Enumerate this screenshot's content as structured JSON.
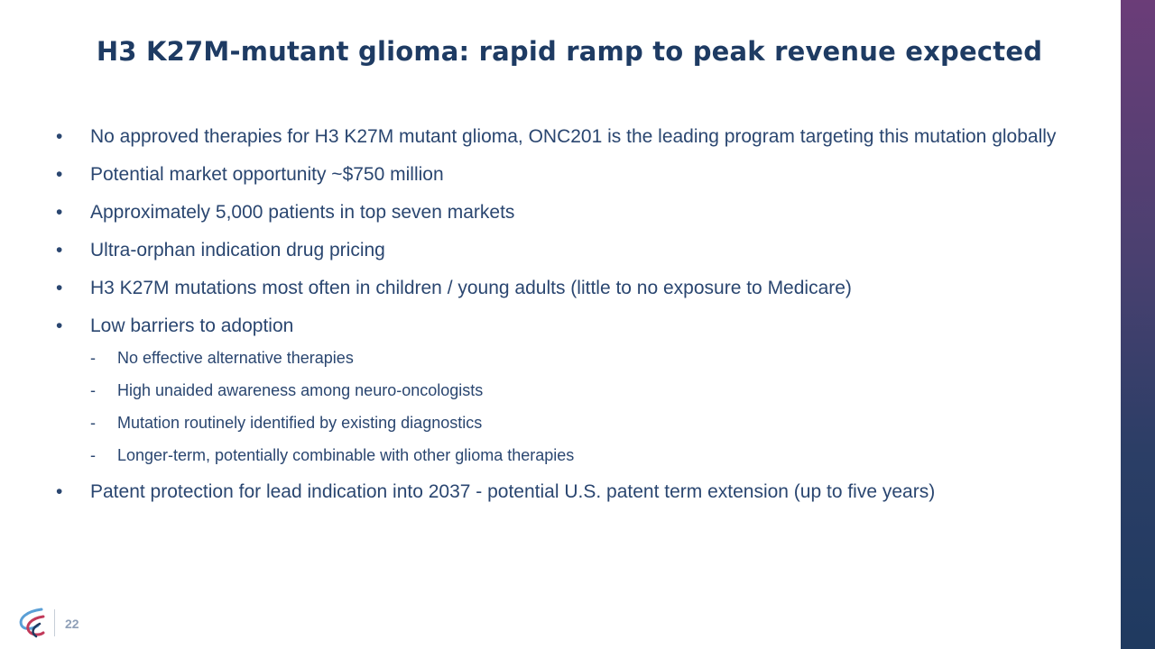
{
  "slide": {
    "title": "H3 K27M-mutant glioma: rapid ramp to peak revenue expected",
    "page_number": "22",
    "colors": {
      "title": "#1e3b63",
      "text": "#2a4670",
      "sidebar_top": "#6b3d78",
      "sidebar_bottom": "#1f3a60"
    }
  },
  "bullets": [
    {
      "text": "No approved therapies for H3 K27M mutant glioma, ONC201 is the leading program targeting this mutation globally"
    },
    {
      "text": "Potential market opportunity ~$750 million"
    },
    {
      "text": "Approximately 5,000 patients in top seven markets"
    },
    {
      "text": "Ultra-orphan indication drug pricing"
    },
    {
      "text": "H3 K27M mutations most often in children / young adults (little to no exposure to Medicare)"
    },
    {
      "text": "Low barriers to adoption",
      "sub": [
        "No effective alternative therapies",
        "High unaided awareness among neuro-oncologists",
        "Mutation routinely identified by existing diagnostics",
        "Longer-term, potentially combinable with other glioma therapies"
      ]
    },
    {
      "text": "Patent protection for lead indication into 2037 - potential U.S. patent term extension (up to five years)"
    }
  ],
  "footer": {
    "logo_icon": "company-logo-icon"
  }
}
